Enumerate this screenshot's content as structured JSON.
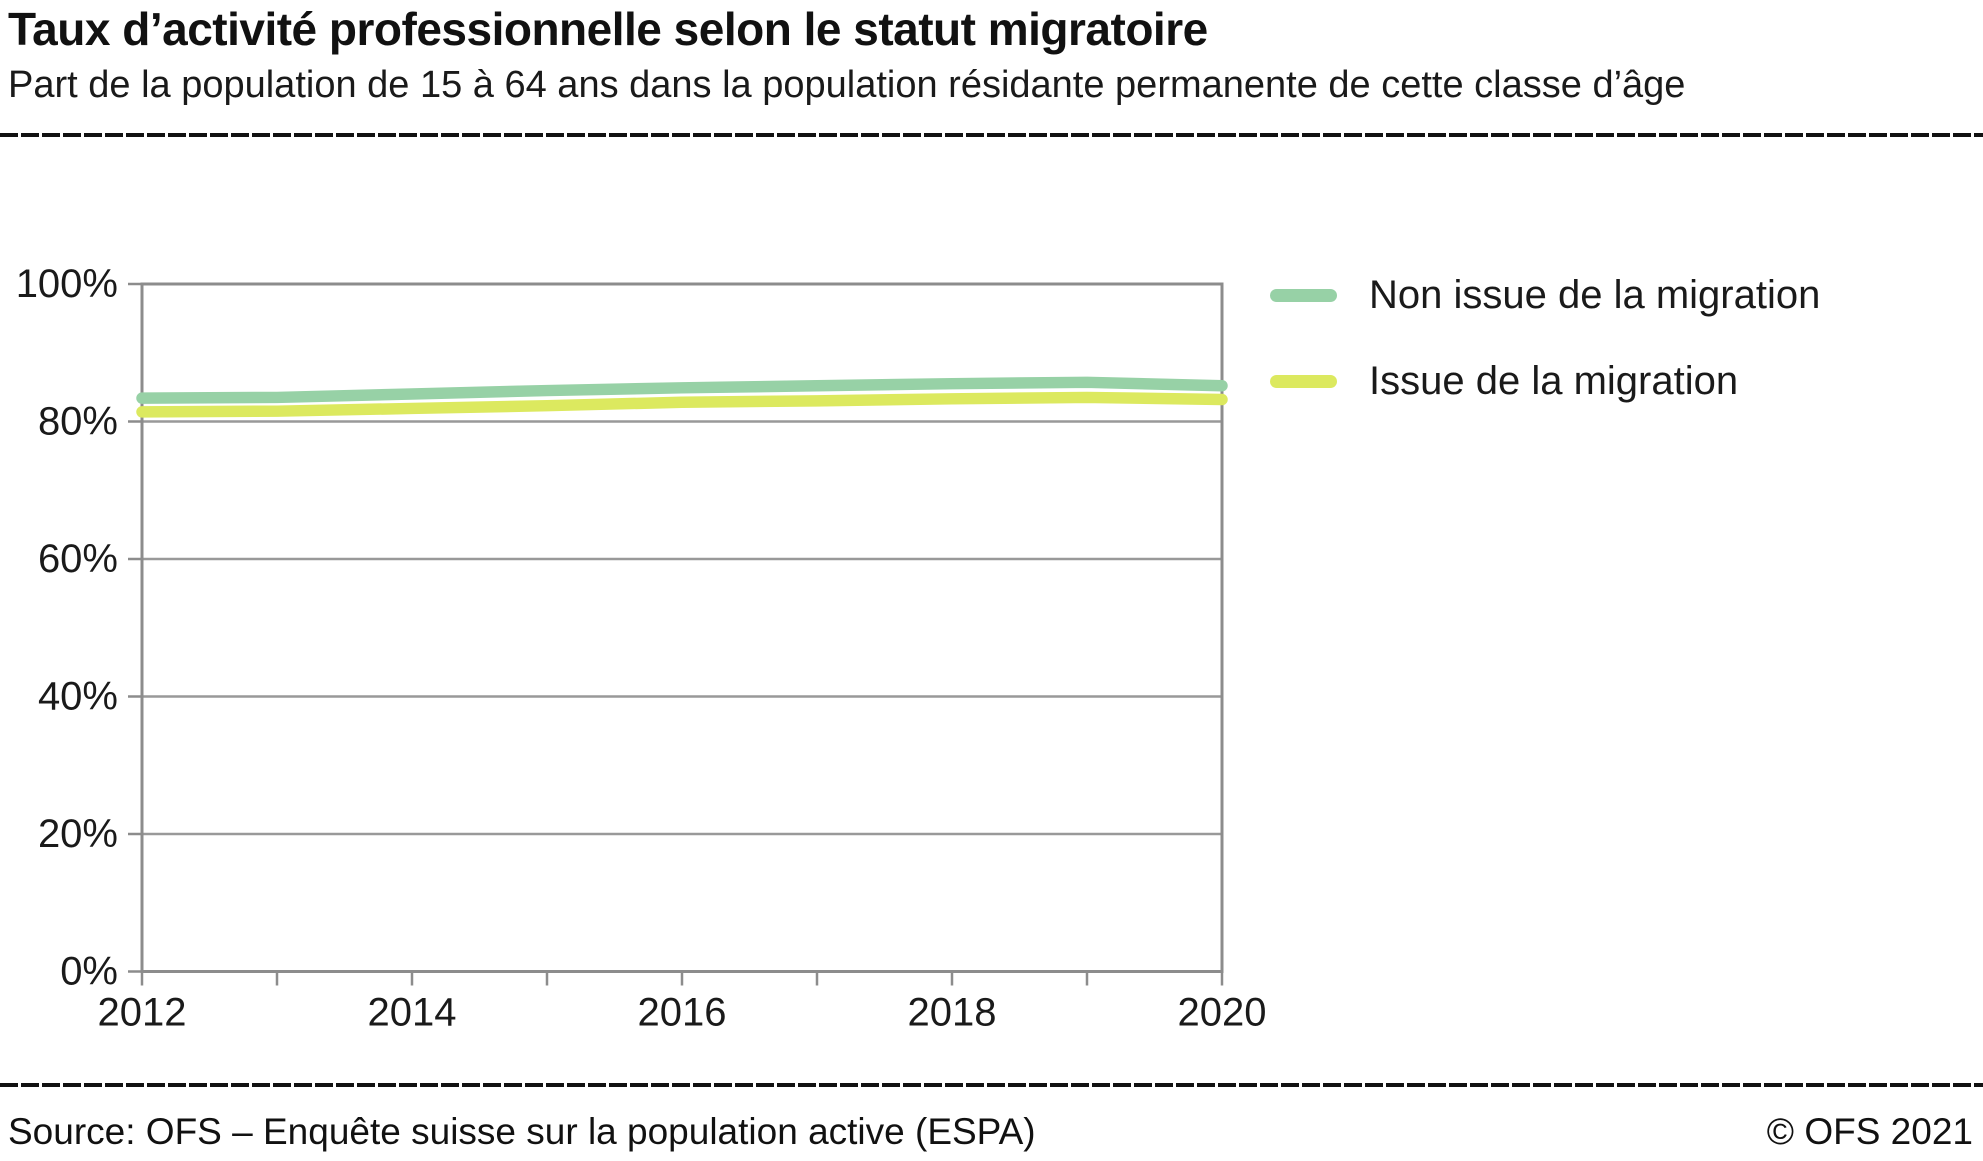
{
  "header": {
    "title": "Taux d’activité professionnelle selon le statut migratoire",
    "subtitle": "Part de la population de 15 à 64 ans dans la population résidante permanente de cette classe d’âge"
  },
  "footer": {
    "source": "Source: OFS – Enquête suisse sur la population active (ESPA)",
    "copyright": "© OFS 2021"
  },
  "chart_data": {
    "type": "line",
    "title": "Taux d’activité professionnelle selon le statut migratoire",
    "x": [
      2012,
      2013,
      2014,
      2015,
      2016,
      2017,
      2018,
      2019,
      2020
    ],
    "series": [
      {
        "name": "Non issue de la migration",
        "color": "#97d1a6",
        "values": [
          83.4,
          83.5,
          84.0,
          84.5,
          84.9,
          85.2,
          85.5,
          85.7,
          85.2
        ]
      },
      {
        "name": "Issue de la migration",
        "color": "#dce95f",
        "values": [
          81.4,
          81.5,
          81.9,
          82.3,
          82.8,
          83.0,
          83.3,
          83.5,
          83.2
        ]
      }
    ],
    "xlim": [
      2012,
      2020
    ],
    "ylim": [
      0,
      100
    ],
    "xticks": [
      2012,
      2013,
      2014,
      2015,
      2016,
      2017,
      2018,
      2019,
      2020
    ],
    "xtick_labels": [
      "2012",
      "",
      "2014",
      "",
      "2016",
      "",
      "2018",
      "",
      "2020"
    ],
    "yticks": [
      0,
      20,
      40,
      60,
      80,
      100
    ],
    "ytick_labels": [
      "0%",
      "20%",
      "40%",
      "60%",
      "80%",
      "100%"
    ],
    "xlabel": "",
    "ylabel": "",
    "grid": "horizontal",
    "legend_position": "right",
    "axis_color": "#8c8c8c",
    "grid_color": "#999999",
    "tick_label_color": "#1a1a1a",
    "line_width": 11.5
  }
}
